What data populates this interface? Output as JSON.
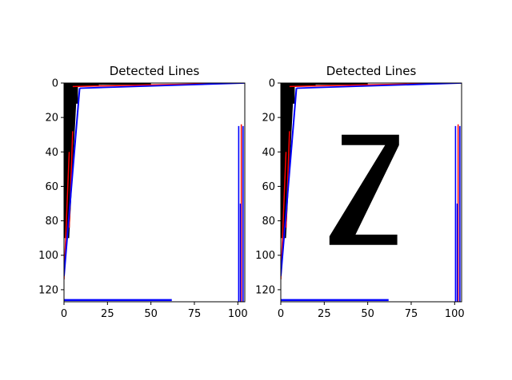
{
  "chart_data": [
    {
      "type": "image_with_lines",
      "title": "Detected Lines",
      "xlim": [
        0,
        104
      ],
      "ylim": [
        127,
        0
      ],
      "xticks": [
        0,
        25,
        50,
        75,
        100
      ],
      "yticks": [
        0,
        20,
        40,
        60,
        80,
        100,
        120
      ],
      "image_regions": [
        {
          "points": [
            [
              0,
              0
            ],
            [
              50,
              0
            ],
            [
              50,
              1
            ],
            [
              20,
              1
            ],
            [
              20,
              2
            ],
            [
              8,
              2
            ],
            [
              8,
              12
            ],
            [
              7,
              12
            ],
            [
              3,
              90
            ],
            [
              0,
              90
            ]
          ]
        }
      ],
      "lines": [
        {
          "color": "#ff0000",
          "x": [
            5,
            102
          ],
          "y": [
            2,
            0
          ],
          "width": 1.5
        },
        {
          "color": "#0000ff",
          "x": [
            9,
            104
          ],
          "y": [
            3,
            0
          ],
          "width": 1.8
        },
        {
          "color": "#ff0000",
          "x": [
            5,
            3
          ],
          "y": [
            28,
            84
          ],
          "width": 1.5
        },
        {
          "color": "#ff0000",
          "x": [
            3,
            0
          ],
          "y": [
            40,
            114
          ],
          "width": 1.5
        },
        {
          "color": "#0000ff",
          "x": [
            9,
            0
          ],
          "y": [
            3,
            112
          ],
          "width": 2.0
        },
        {
          "color": "#ff0000",
          "x": [
            102,
            102
          ],
          "y": [
            24,
            127
          ],
          "width": 1.5
        },
        {
          "color": "#0000ff",
          "x": [
            100.5,
            100.5
          ],
          "y": [
            25,
            127
          ],
          "width": 1.6
        },
        {
          "color": "#0000ff",
          "x": [
            103,
            103
          ],
          "y": [
            25,
            127
          ],
          "width": 1.6
        },
        {
          "color": "#0000ff",
          "x": [
            101.5,
            101.5
          ],
          "y": [
            70,
            127
          ],
          "width": 1.6
        },
        {
          "color": "#0000ff",
          "x": [
            0,
            62
          ],
          "y": [
            126,
            126
          ],
          "width": 2.5
        }
      ]
    },
    {
      "type": "image_with_lines",
      "title": "Detected Lines",
      "xlim": [
        0,
        104
      ],
      "ylim": [
        127,
        0
      ],
      "xticks": [
        0,
        25,
        50,
        75,
        100
      ],
      "yticks": [
        0,
        20,
        40,
        60,
        80,
        100,
        120
      ],
      "image_regions": [
        {
          "points": [
            [
              0,
              0
            ],
            [
              50,
              0
            ],
            [
              50,
              1
            ],
            [
              20,
              1
            ],
            [
              20,
              2
            ],
            [
              8,
              2
            ],
            [
              8,
              12
            ],
            [
              7,
              12
            ],
            [
              3,
              90
            ],
            [
              0,
              90
            ]
          ]
        },
        {
          "points": [
            [
              35,
              30
            ],
            [
              68,
              30
            ],
            [
              68,
              36
            ],
            [
              43,
              88
            ],
            [
              67,
              88
            ],
            [
              67,
              94
            ],
            [
              28,
              94
            ],
            [
              28,
              89
            ],
            [
              60,
              36
            ],
            [
              35,
              36
            ]
          ]
        }
      ],
      "lines": [
        {
          "color": "#ff0000",
          "x": [
            5,
            102
          ],
          "y": [
            2,
            0
          ],
          "width": 1.5
        },
        {
          "color": "#0000ff",
          "x": [
            9,
            104
          ],
          "y": [
            3,
            0
          ],
          "width": 1.8
        },
        {
          "color": "#ff0000",
          "x": [
            5,
            3
          ],
          "y": [
            28,
            84
          ],
          "width": 1.5
        },
        {
          "color": "#ff0000",
          "x": [
            3,
            0
          ],
          "y": [
            40,
            114
          ],
          "width": 1.5
        },
        {
          "color": "#0000ff",
          "x": [
            9,
            0
          ],
          "y": [
            3,
            112
          ],
          "width": 2.0
        },
        {
          "color": "#ff0000",
          "x": [
            102,
            102
          ],
          "y": [
            24,
            127
          ],
          "width": 1.5
        },
        {
          "color": "#0000ff",
          "x": [
            100.5,
            100.5
          ],
          "y": [
            25,
            127
          ],
          "width": 1.6
        },
        {
          "color": "#0000ff",
          "x": [
            103,
            103
          ],
          "y": [
            25,
            127
          ],
          "width": 1.6
        },
        {
          "color": "#0000ff",
          "x": [
            101.5,
            101.5
          ],
          "y": [
            70,
            127
          ],
          "width": 1.6
        },
        {
          "color": "#0000ff",
          "x": [
            0,
            62
          ],
          "y": [
            126,
            126
          ],
          "width": 2.5
        }
      ]
    }
  ]
}
